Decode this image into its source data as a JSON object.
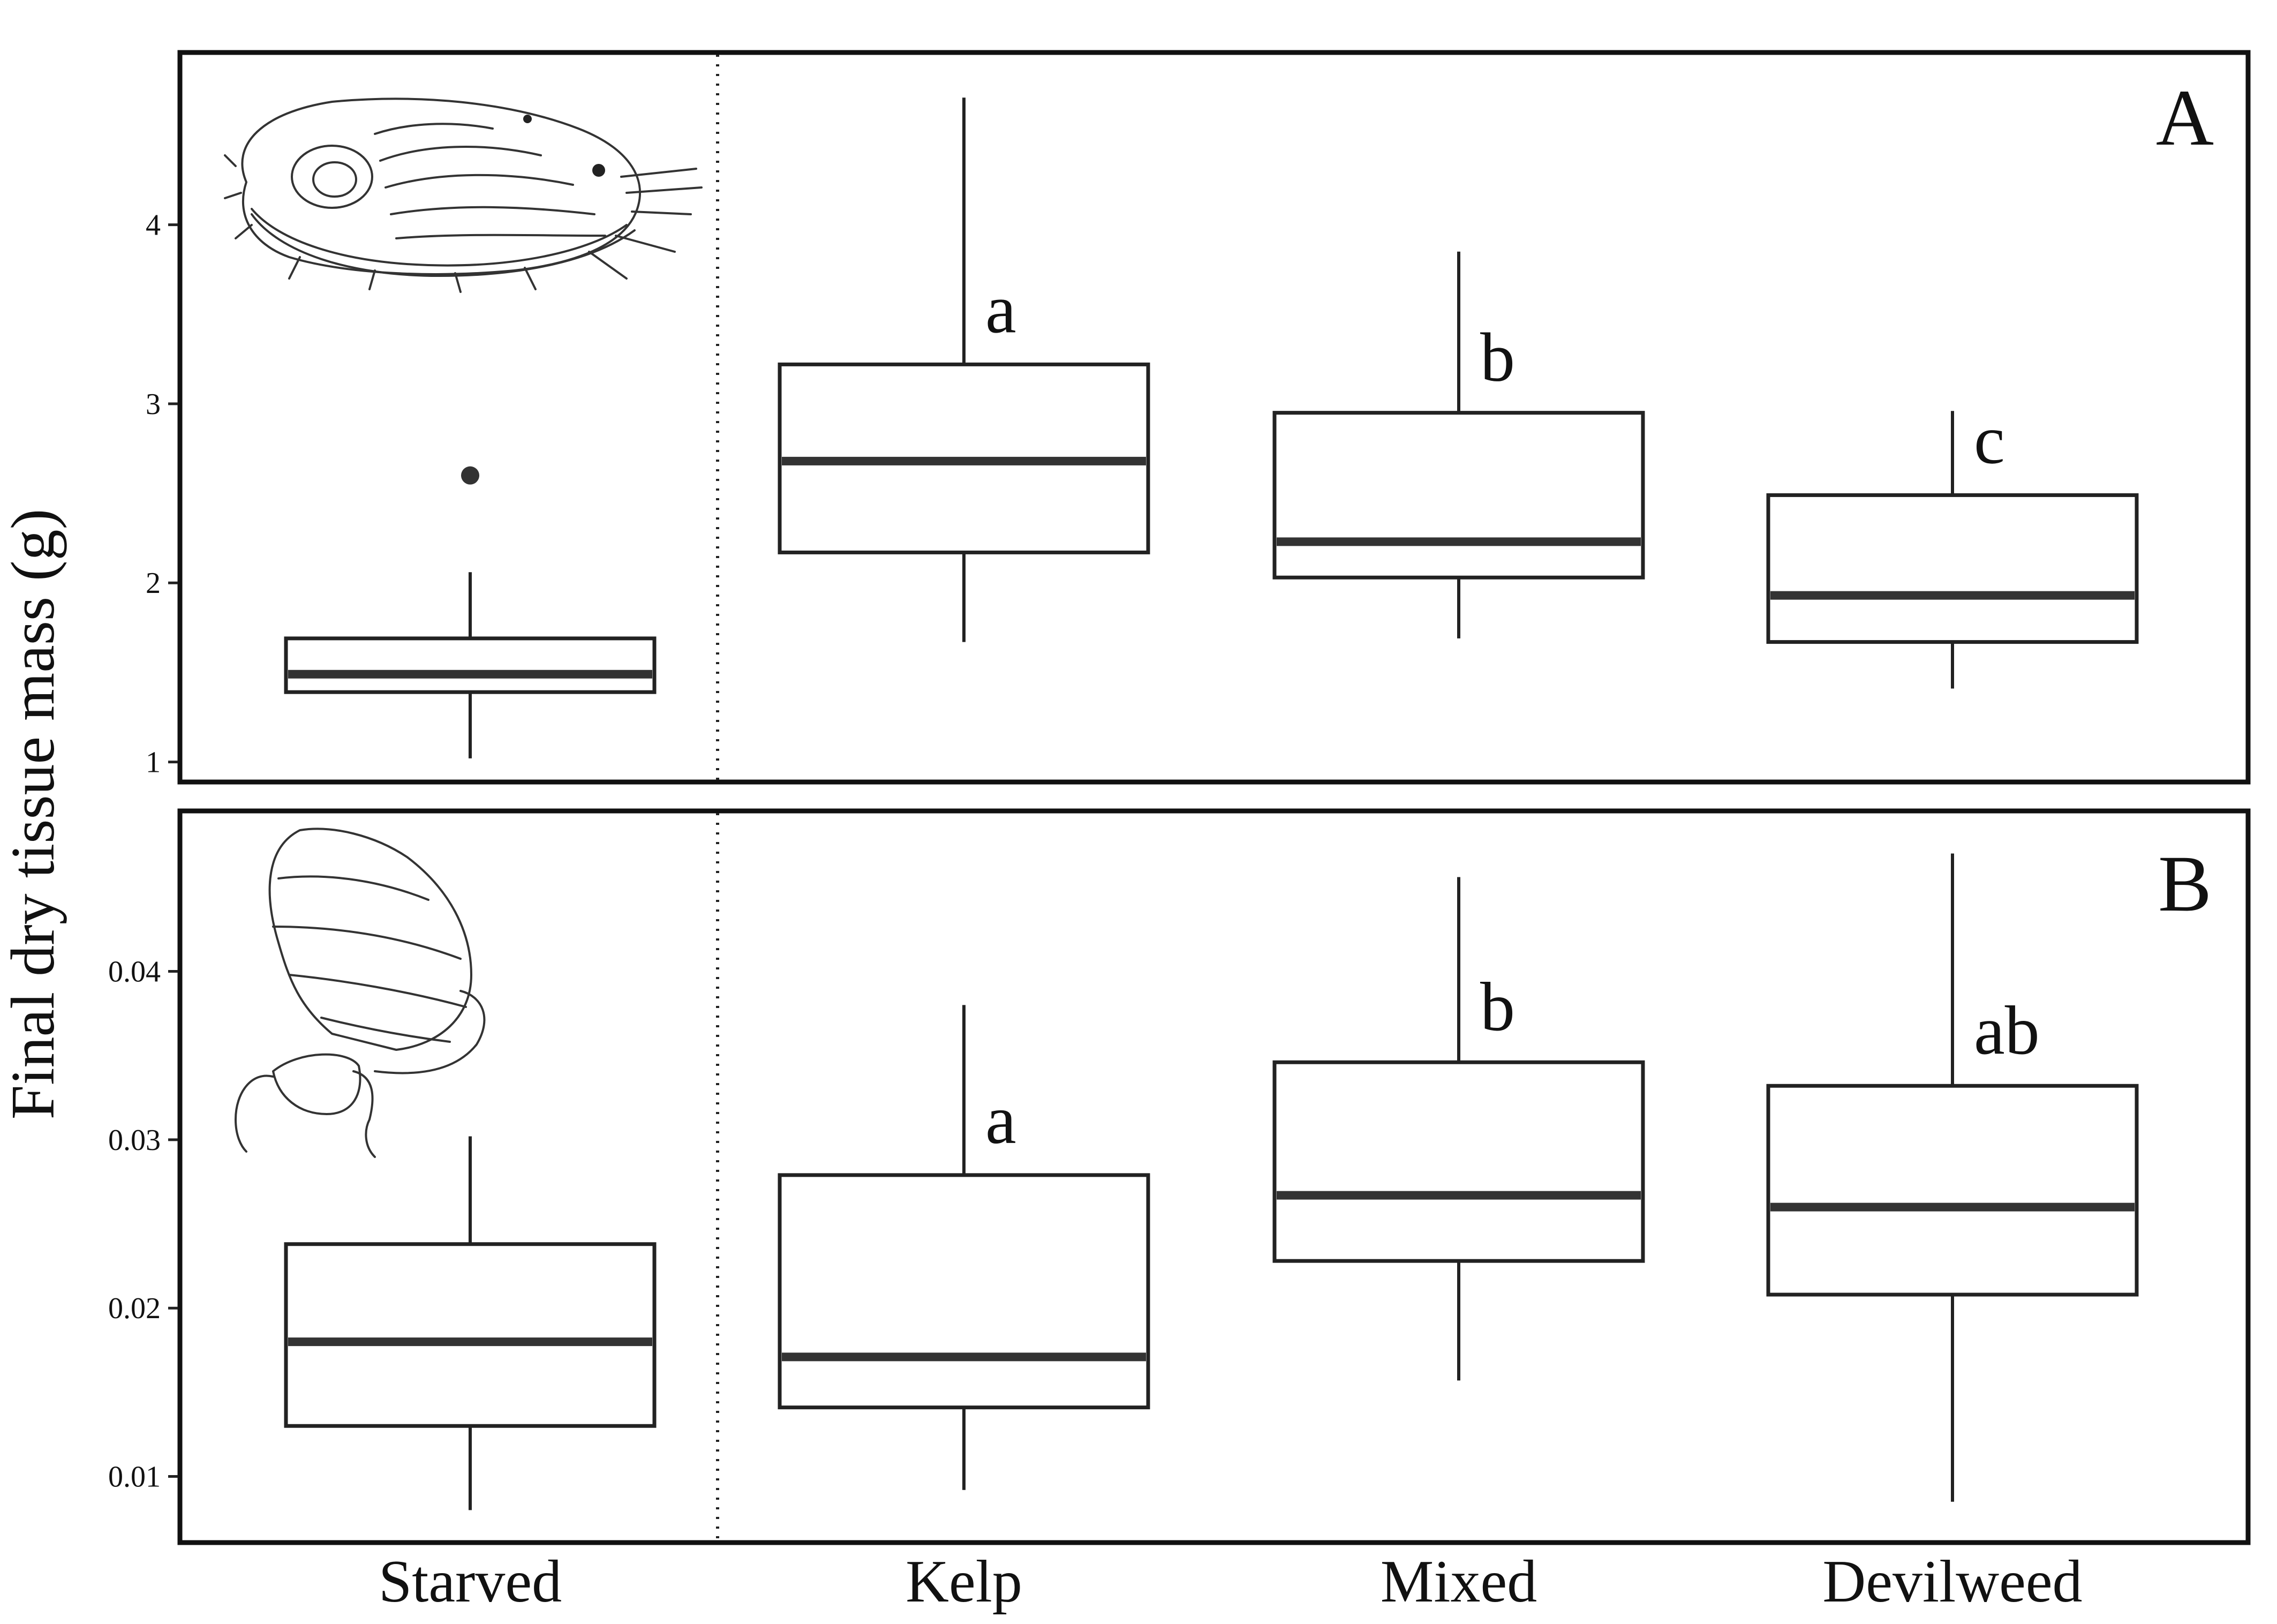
{
  "figure": {
    "ylabel": "Final dry tissue mass (g)",
    "categories": [
      "Starved",
      "Kelp",
      "Mixed",
      "Devilweed"
    ]
  },
  "chart_data": [
    {
      "type": "box",
      "panel": "A",
      "categories": [
        "Starved",
        "Kelp",
        "Mixed",
        "Devilweed"
      ],
      "yticks": [
        1,
        2,
        3,
        4
      ],
      "ylim": [
        0.9,
        4.95
      ],
      "boxes": [
        {
          "category": "Starved",
          "min": 1.02,
          "q1": 1.39,
          "median": 1.49,
          "q3": 1.69,
          "max": 2.06,
          "outliers": [
            2.6
          ],
          "letter": ""
        },
        {
          "category": "Kelp",
          "min": 1.67,
          "q1": 2.17,
          "median": 2.68,
          "q3": 3.22,
          "max": 4.71,
          "outliers": [],
          "letter": "a"
        },
        {
          "category": "Mixed",
          "min": 1.69,
          "q1": 2.03,
          "median": 2.23,
          "q3": 2.95,
          "max": 3.85,
          "outliers": [],
          "letter": "b"
        },
        {
          "category": "Devilweed",
          "min": 1.41,
          "q1": 1.67,
          "median": 1.93,
          "q3": 2.49,
          "max": 2.96,
          "outliers": [],
          "letter": "c"
        }
      ],
      "grid": false
    },
    {
      "type": "box",
      "panel": "B",
      "categories": [
        "Starved",
        "Kelp",
        "Mixed",
        "Devilweed"
      ],
      "yticks": [
        0.01,
        0.02,
        0.03,
        0.04
      ],
      "ytick_labels": [
        "0.01",
        "0.02",
        "0.03",
        "0.04"
      ],
      "ylim": [
        0.0062,
        0.0494
      ],
      "boxes": [
        {
          "category": "Starved",
          "min": 0.008,
          "q1": 0.013,
          "median": 0.018,
          "q3": 0.0238,
          "max": 0.0302,
          "outliers": [],
          "letter": ""
        },
        {
          "category": "Kelp",
          "min": 0.0092,
          "q1": 0.0141,
          "median": 0.0171,
          "q3": 0.0279,
          "max": 0.038,
          "outliers": [],
          "letter": "a"
        },
        {
          "category": "Mixed",
          "min": 0.0157,
          "q1": 0.0228,
          "median": 0.0267,
          "q3": 0.0346,
          "max": 0.0456,
          "outliers": [],
          "letter": "b"
        },
        {
          "category": "Devilweed",
          "min": 0.0085,
          "q1": 0.0208,
          "median": 0.026,
          "q3": 0.0332,
          "max": 0.047,
          "outliers": [],
          "letter": "ab"
        }
      ],
      "grid": false
    }
  ]
}
